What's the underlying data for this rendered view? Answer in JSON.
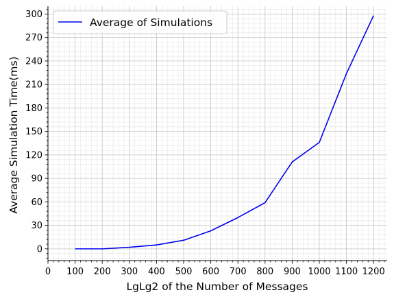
{
  "chart_data": {
    "type": "line",
    "title": "",
    "xlabel": "LgLg2 of the Number of Messages",
    "ylabel": "Average Simulation Time(ms)",
    "xlim": [
      0,
      1250
    ],
    "ylim": [
      -15,
      310
    ],
    "x_ticks": [
      0,
      100,
      200,
      300,
      400,
      500,
      600,
      700,
      800,
      900,
      1000,
      1100,
      1200
    ],
    "y_ticks": [
      0,
      30,
      60,
      90,
      120,
      150,
      180,
      210,
      240,
      270,
      300
    ],
    "grid": true,
    "legend_position": "upper-left",
    "series": [
      {
        "name": "Average of Simulations",
        "color": "#0000ee",
        "x": [
          100,
          200,
          300,
          400,
          500,
          600,
          700,
          800,
          900,
          1000,
          1100,
          1200
        ],
        "y": [
          0,
          0,
          2,
          5,
          11,
          23,
          40,
          59,
          111,
          136,
          224,
          298
        ]
      }
    ]
  }
}
